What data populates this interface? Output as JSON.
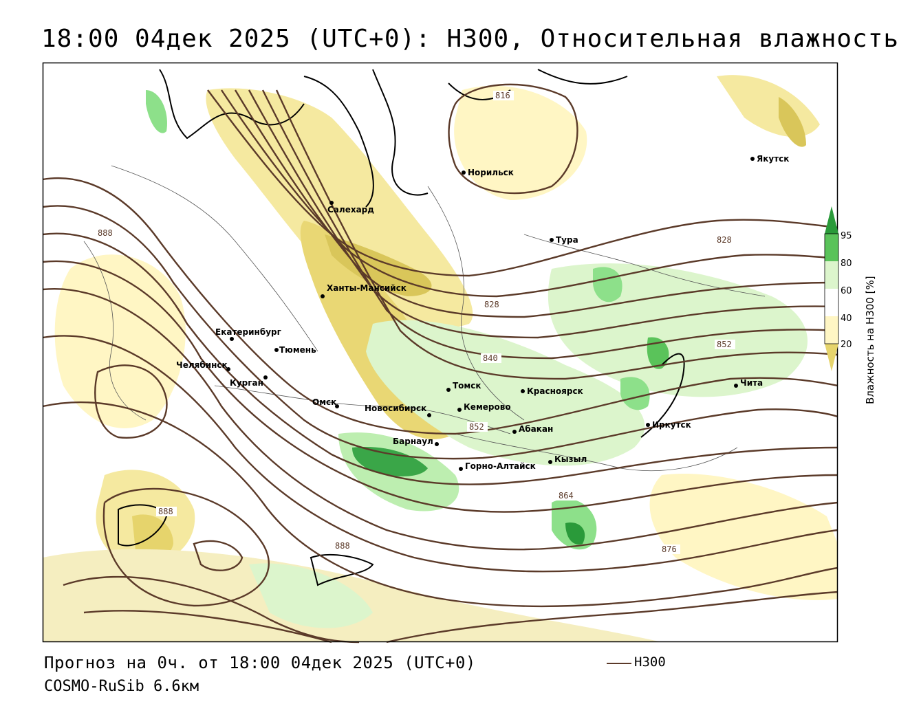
{
  "title": "18:00 04дек 2025 (UTC+0): H300, Относительная влажность",
  "footer": {
    "forecast": "Прогноз на 0ч. от 18:00 04дек 2025 (UTC+0)",
    "model": "COSMO-RuSib 6.6км"
  },
  "legend": {
    "line_label": "H300",
    "line_color": "#5b3a29"
  },
  "colorbar": {
    "title": "Влажность на H300 [%]",
    "ticks": [
      "95",
      "80",
      "60",
      "40",
      "20"
    ],
    "colors": {
      "very_dry": "#f0e08a",
      "dry": "#fff8c8",
      "moist": "#d8f5c8",
      "wet": "#8de08a",
      "saturated": "#2a9a3a"
    }
  },
  "cities": [
    {
      "name": "Салехард"
    },
    {
      "name": "Норильск"
    },
    {
      "name": "Якутск"
    },
    {
      "name": "Тура"
    },
    {
      "name": "Ханты-Мансийск"
    },
    {
      "name": "Екатеринбург"
    },
    {
      "name": "Тюмень"
    },
    {
      "name": "Челябинск"
    },
    {
      "name": "Курган"
    },
    {
      "name": "Омск"
    },
    {
      "name": "Новосибирск"
    },
    {
      "name": "Томск"
    },
    {
      "name": "Кемерово"
    },
    {
      "name": "Красноярск"
    },
    {
      "name": "Барнаул"
    },
    {
      "name": "Горно-Алтайск"
    },
    {
      "name": "Абакан"
    },
    {
      "name": "Кызыл"
    },
    {
      "name": "Иркутск"
    },
    {
      "name": "Чита"
    }
  ],
  "contour_labels": [
    "816",
    "828",
    "828",
    "840",
    "852",
    "852",
    "864",
    "876",
    "888",
    "888",
    "888"
  ]
}
